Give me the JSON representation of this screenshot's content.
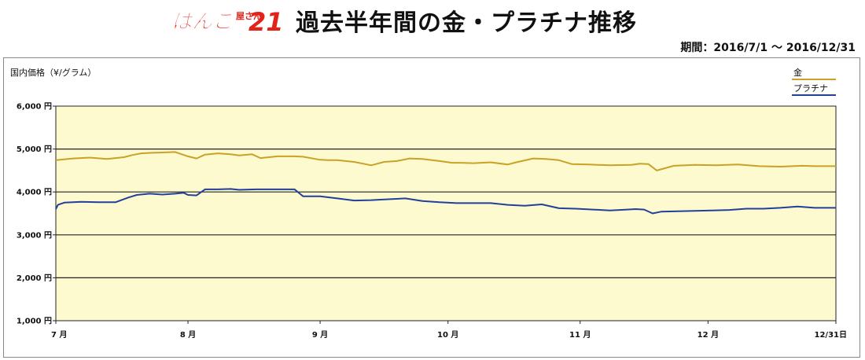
{
  "header": {
    "logo_text": "はんこ屋さん21",
    "logo_main": "はんこ",
    "logo_sub": "屋さん",
    "logo_num": "21",
    "title": "過去半年間の金・プラチナ推移",
    "period": "期間：2016/7/1 〜 2016/12/31"
  },
  "colors": {
    "gold": "#c9a227",
    "platinum": "#22409a",
    "plot_bg": "#fdfad0",
    "logo_red": "#e2231a"
  },
  "chart_data": {
    "type": "line",
    "ylabel": "国内価格（¥/グラム）",
    "ylim": [
      1000,
      6000
    ],
    "yticks": [
      1000,
      2000,
      3000,
      4000,
      5000,
      6000
    ],
    "ytick_labels": [
      "1,000 円",
      "2,000 円",
      "3,000 円",
      "4,000 円",
      "5,000 円",
      "6,000 円"
    ],
    "xlim": [
      0,
      183
    ],
    "xticks": [
      0,
      31,
      62,
      92,
      123,
      153,
      183
    ],
    "xtick_labels": [
      "7 月",
      "8 月",
      "9 月",
      "10 月",
      "11 月",
      "12 月",
      "12/31日"
    ],
    "legend_position": "top-right",
    "grid": true,
    "series": [
      {
        "name": "金",
        "color": "#c9a227",
        "x": [
          0,
          4,
          8,
          12,
          16,
          18,
          20,
          22,
          25,
          28,
          31,
          33,
          35,
          38,
          41,
          43,
          46,
          48,
          52,
          56,
          58,
          62,
          64,
          66,
          70,
          74,
          77,
          80,
          83,
          86,
          90,
          93,
          95,
          98,
          102,
          106,
          108,
          112,
          115,
          118,
          121,
          125,
          130,
          135,
          137,
          139,
          141,
          145,
          150,
          155,
          160,
          165,
          170,
          175,
          178,
          183
        ],
        "values": [
          4740,
          4780,
          4800,
          4770,
          4810,
          4860,
          4900,
          4910,
          4920,
          4930,
          4830,
          4780,
          4870,
          4900,
          4880,
          4850,
          4880,
          4790,
          4830,
          4830,
          4820,
          4750,
          4740,
          4740,
          4700,
          4620,
          4700,
          4720,
          4780,
          4770,
          4720,
          4680,
          4680,
          4670,
          4690,
          4640,
          4690,
          4780,
          4770,
          4740,
          4650,
          4640,
          4620,
          4630,
          4660,
          4650,
          4500,
          4610,
          4630,
          4620,
          4640,
          4600,
          4590,
          4610,
          4600,
          4600
        ]
      },
      {
        "name": "プラチナ",
        "color": "#22409a",
        "x": [
          0,
          0.5,
          2,
          6,
          10,
          14,
          17,
          19,
          22,
          25,
          28,
          30,
          31,
          33,
          35,
          38,
          41,
          43,
          47,
          50,
          54,
          56,
          58,
          60,
          62,
          66,
          70,
          74,
          78,
          82,
          86,
          90,
          94,
          98,
          102,
          106,
          110,
          114,
          118,
          122,
          126,
          130,
          134,
          136,
          138,
          140,
          142,
          146,
          150,
          154,
          158,
          162,
          166,
          170,
          174,
          178,
          183
        ],
        "values": [
          3600,
          3700,
          3750,
          3770,
          3760,
          3760,
          3870,
          3930,
          3960,
          3940,
          3960,
          3980,
          3930,
          3920,
          4060,
          4060,
          4070,
          4050,
          4060,
          4060,
          4060,
          4060,
          3900,
          3900,
          3900,
          3850,
          3800,
          3810,
          3830,
          3850,
          3790,
          3760,
          3740,
          3740,
          3740,
          3700,
          3680,
          3710,
          3620,
          3610,
          3590,
          3570,
          3590,
          3600,
          3590,
          3500,
          3540,
          3550,
          3560,
          3570,
          3580,
          3610,
          3610,
          3630,
          3660,
          3630,
          3630
        ]
      }
    ]
  }
}
